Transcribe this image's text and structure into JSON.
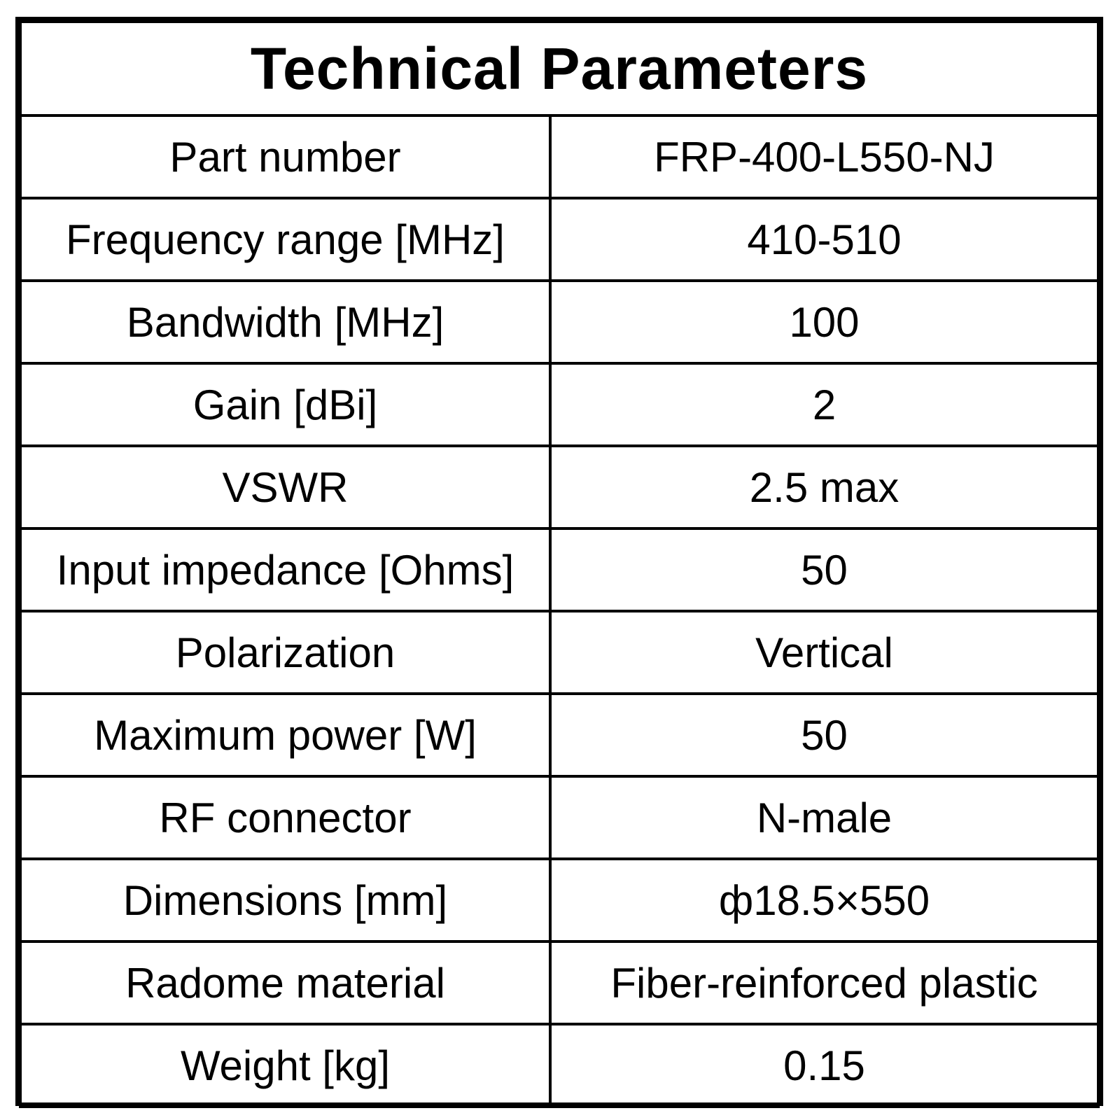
{
  "table": {
    "title": "Technical Parameters",
    "rows": [
      {
        "label": "Part number",
        "value": "FRP-400-L550-NJ"
      },
      {
        "label": "Frequency range [MHz]",
        "value": "410-510"
      },
      {
        "label": "Bandwidth [MHz]",
        "value": "100"
      },
      {
        "label": "Gain [dBi]",
        "value": "2"
      },
      {
        "label": "VSWR",
        "value": "2.5 max"
      },
      {
        "label": "Input impedance [Ohms]",
        "value": "50"
      },
      {
        "label": "Polarization",
        "value": "Vertical"
      },
      {
        "label": "Maximum power [W]",
        "value": "50"
      },
      {
        "label": "RF connector",
        "value": "N-male"
      },
      {
        "label": "Dimensions [mm]",
        "value": "ф18.5×550"
      },
      {
        "label": "Radome material",
        "value": "Fiber-reinforced plastic"
      },
      {
        "label": "Weight [kg]",
        "value": "0.15"
      }
    ]
  }
}
